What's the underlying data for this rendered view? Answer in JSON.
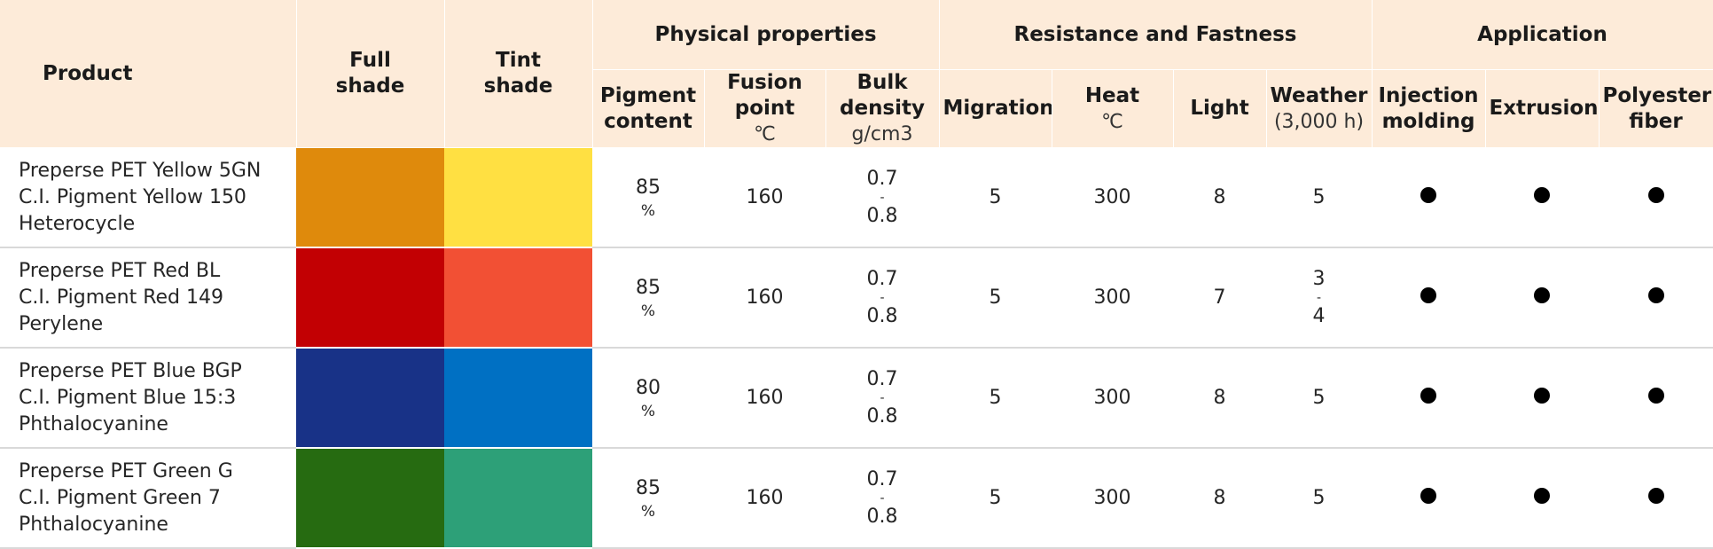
{
  "headers": {
    "product": "Product",
    "full_shade": [
      "Full",
      "shade"
    ],
    "tint_shade": [
      "Tint",
      "shade"
    ],
    "physical": "Physical properties",
    "resistance": "Resistance and Fastness",
    "application": "Application",
    "pigment_content": [
      "Pigment",
      "content"
    ],
    "fusion_point": [
      "Fusion",
      "point"
    ],
    "fusion_unit": "℃",
    "bulk_density": [
      "Bulk",
      "density"
    ],
    "bulk_unit": "g/cm3",
    "migration": "Migration",
    "heat": "Heat",
    "heat_unit": "℃",
    "light": "Light",
    "weather": "Weather",
    "weather_unit": "(3,000 h)",
    "injection": [
      "Injection",
      "molding"
    ],
    "extrusion": "Extrusion",
    "polyester": [
      "Polyester",
      "fiber"
    ]
  },
  "rows": [
    {
      "name": "Preperse PET Yellow 5GN",
      "ci": "C.I. Pigment Yellow 150",
      "chem": "Heterocycle",
      "full_color": "#df8a0c",
      "tint_color": "#ffe042",
      "pigment": "85",
      "pigment_unit": "%",
      "fusion": "160",
      "bulk_min": "0.7",
      "bulk_sep": "-",
      "bulk_max": "0.8",
      "migration": "5",
      "heat": "300",
      "light": "8",
      "weather_a": "5",
      "weather_sep": "",
      "weather_b": "",
      "injection": true,
      "extrusion": true,
      "polyester": true
    },
    {
      "name": "Preperse PET Red BL",
      "ci": "C.I. Pigment Red 149",
      "chem": "Perylene",
      "full_color": "#c20003",
      "tint_color": "#f25034",
      "pigment": "85",
      "pigment_unit": "%",
      "fusion": "160",
      "bulk_min": "0.7",
      "bulk_sep": "-",
      "bulk_max": "0.8",
      "migration": "5",
      "heat": "300",
      "light": "7",
      "weather_a": "3",
      "weather_sep": "-",
      "weather_b": "4",
      "injection": true,
      "extrusion": true,
      "polyester": true
    },
    {
      "name": "Preperse PET Blue BGP",
      "ci": "C.I. Pigment Blue 15:3",
      "chem": "Phthalocyanine",
      "full_color": "#183287",
      "tint_color": "#0070c3",
      "pigment": "80",
      "pigment_unit": "%",
      "fusion": "160",
      "bulk_min": "0.7",
      "bulk_sep": "-",
      "bulk_max": "0.8",
      "migration": "5",
      "heat": "300",
      "light": "8",
      "weather_a": "5",
      "weather_sep": "",
      "weather_b": "",
      "injection": true,
      "extrusion": true,
      "polyester": true
    },
    {
      "name": "Preperse PET Green G",
      "ci": "C.I. Pigment Green 7",
      "chem": "Phthalocyanine",
      "full_color": "#266b11",
      "tint_color": "#2da078",
      "pigment": "85",
      "pigment_unit": "%",
      "fusion": "160",
      "bulk_min": "0.7",
      "bulk_sep": "-",
      "bulk_max": "0.8",
      "migration": "5",
      "heat": "300",
      "light": "8",
      "weather_a": "5",
      "weather_sep": "",
      "weather_b": "",
      "injection": true,
      "extrusion": true,
      "polyester": true
    }
  ]
}
